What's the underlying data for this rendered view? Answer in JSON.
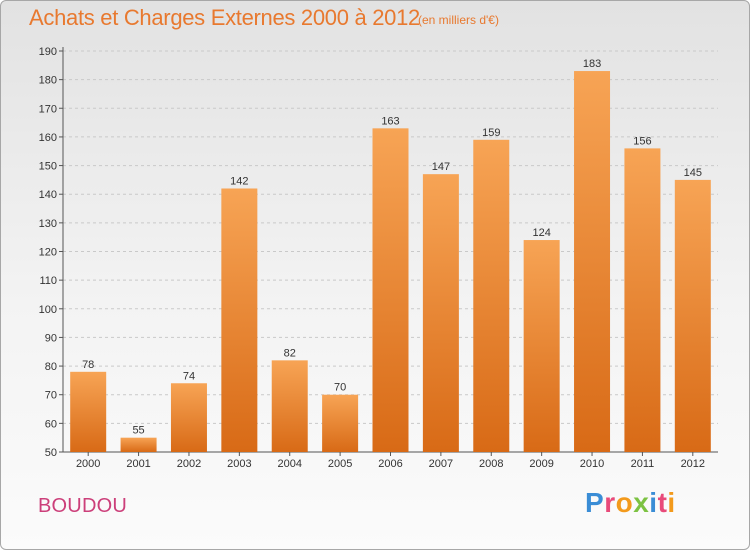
{
  "header": {
    "title": "Achats et Charges Externes 2000 à 2012",
    "subtitle": "(en milliers d'€)"
  },
  "footer": {
    "place": "BOUDOU",
    "logo": "Proxiti",
    "logo_colors": [
      "#3a8dd6",
      "#e84a7a",
      "#f39a1c",
      "#7cc242",
      "#3a8dd6",
      "#e84a7a",
      "#f39a1c"
    ]
  },
  "colors": {
    "bar_light": "#f7a455",
    "bar_dark": "#d86a16",
    "title": "#e8792f",
    "place": "#cc3f7a"
  },
  "chart_data": {
    "type": "bar",
    "categories": [
      "2000",
      "2001",
      "2002",
      "2003",
      "2004",
      "2005",
      "2006",
      "2007",
      "2008",
      "2009",
      "2010",
      "2011",
      "2012"
    ],
    "values": [
      78,
      55,
      74,
      142,
      82,
      70,
      163,
      147,
      159,
      124,
      183,
      156,
      145
    ],
    "yticks": [
      50,
      60,
      70,
      80,
      90,
      100,
      110,
      120,
      130,
      140,
      150,
      160,
      170,
      180,
      190
    ],
    "ylim": [
      50,
      190
    ],
    "grid": true,
    "gridlines": "horizontal, dashed"
  }
}
